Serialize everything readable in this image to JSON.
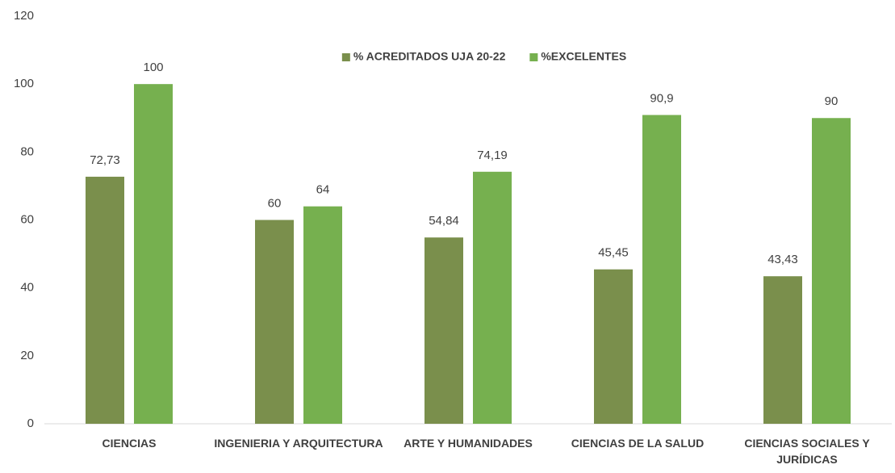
{
  "chart_data": {
    "type": "bar",
    "categories": [
      "CIENCIAS",
      "INGENIERIA Y ARQUITECTURA",
      "ARTE Y HUMANIDADES",
      "CIENCIAS DE LA SALUD",
      "CIENCIAS SOCIALES Y JURÍDICAS"
    ],
    "series": [
      {
        "name": "% ACREDITADOS UJA 20-22",
        "color": "#7a8f4c",
        "values": [
          72.73,
          60,
          54.84,
          45.45,
          43.43
        ],
        "value_labels": [
          "72,73",
          "60",
          "54,84",
          "45,45",
          "43,43"
        ]
      },
      {
        "name": "%EXCELENTES",
        "color": "#76b04f",
        "values": [
          100,
          64,
          74.19,
          90.9,
          90
        ],
        "value_labels": [
          "100",
          "64",
          "74,19",
          "90,9",
          "90"
        ]
      }
    ],
    "ylim": [
      0,
      120
    ],
    "yticks": [
      0,
      20,
      40,
      60,
      80,
      100,
      120
    ],
    "grid": false,
    "legend": "top"
  }
}
